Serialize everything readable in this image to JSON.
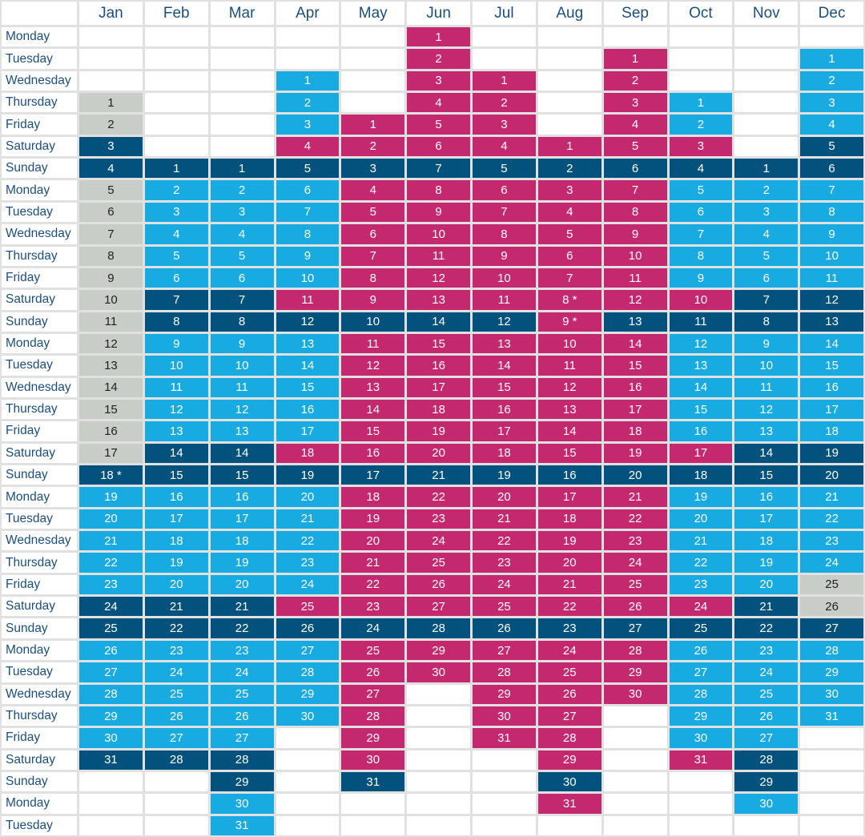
{
  "weekdays": [
    "Monday",
    "Tuesday",
    "Wednesday",
    "Thursday",
    "Friday",
    "Saturday",
    "Sunday"
  ],
  "colors": {
    "g": "#c8cdc8",
    "d": "#03517d",
    "l": "#17abe1",
    "m": "#c4296f",
    "text_light": "#ffffff",
    "text_dark": "#222222"
  },
  "legend_codes": {
    "g": "grey",
    "d": "dark-blue",
    "l": "light-blue",
    "m": "magenta"
  },
  "months": [
    {
      "name": "Jan",
      "start": 3,
      "days": 31,
      "asterisk": [
        18
      ],
      "codes": "ggddgggggggggggggdlllllddllllld"
    },
    {
      "name": "Feb",
      "start": 6,
      "days": 28,
      "asterisk": [],
      "codes": "dlllllddlllllddlllllddllllld"
    },
    {
      "name": "Mar",
      "start": 6,
      "days": 31,
      "asterisk": [],
      "codes": "dlllllddlllllddlllllddlllllddll"
    },
    {
      "name": "Apr",
      "start": 2,
      "days": 30,
      "asterisk": [],
      "codes": "lllmdlllllmdlllllmdlllllmdllll"
    },
    {
      "name": "May",
      "start": 4,
      "days": 31,
      "asterisk": [],
      "codes": "mmdmmmmmmdmmmmmmdmmmmmmdmmmmmmd"
    },
    {
      "name": "Jun",
      "start": 0,
      "days": 30,
      "asterisk": [],
      "codes": "mmmmmmdmmmmmmdmmmmmmdmmmmmmdmm"
    },
    {
      "name": "Jul",
      "start": 2,
      "days": 31,
      "asterisk": [],
      "codes": "mmmmdmmmmmmdmmmmmmdmmmmmmdmmmmm"
    },
    {
      "name": "Aug",
      "start": 5,
      "days": 31,
      "asterisk": [
        8,
        9
      ],
      "codes": "mdmmmmmmmmmmmmmdmmmmmmdmmmmmmdm"
    },
    {
      "name": "Sep",
      "start": 1,
      "days": 30,
      "asterisk": [],
      "codes": "mmmmmdmmmmmmdmmmmmmdmmmmmmdmmm"
    },
    {
      "name": "Oct",
      "start": 3,
      "days": 31,
      "asterisk": [],
      "codes": "llmdlllllmdlllllmdlllllmdlllllm"
    },
    {
      "name": "Nov",
      "start": 6,
      "days": 30,
      "asterisk": [],
      "codes": "dlllllddlllllddlllllddlllllddl"
    },
    {
      "name": "Dec",
      "start": 1,
      "days": 31,
      "asterisk": [],
      "codes": "llllddlllllddlllllddllllggdllll"
    }
  ]
}
